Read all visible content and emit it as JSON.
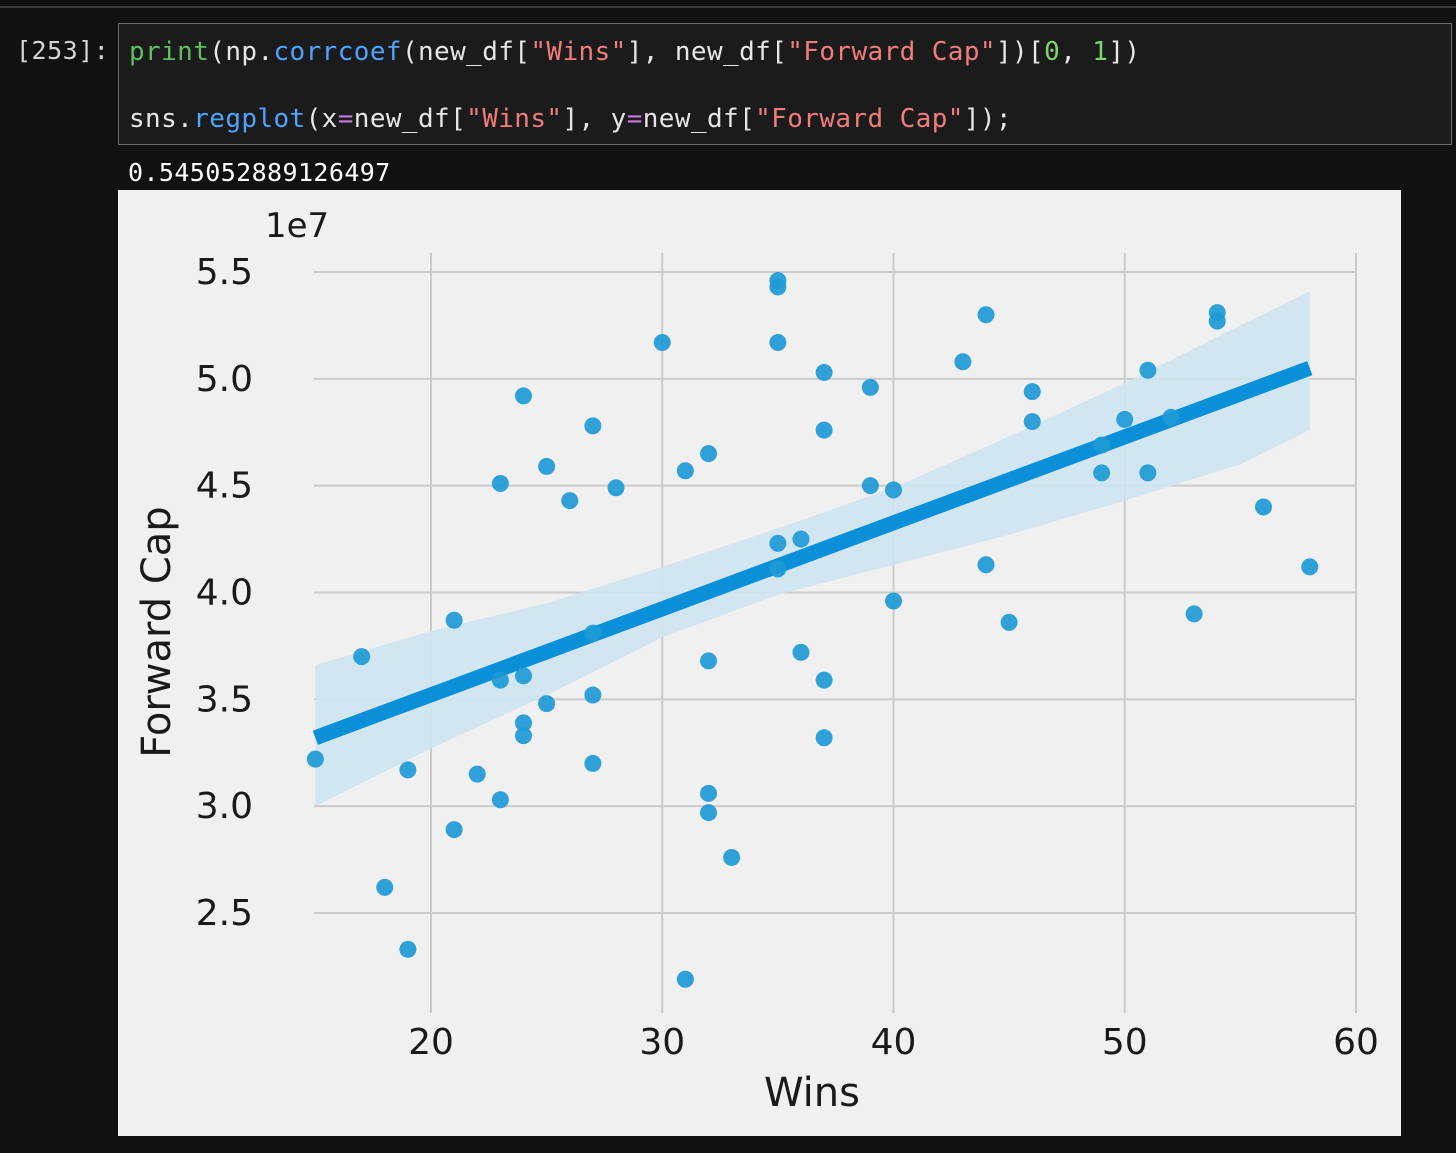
{
  "cell": {
    "prompt": "[253]:",
    "code_line1": [
      {
        "t": "print",
        "c": "tok-fn"
      },
      {
        "t": "(np.",
        "c": "tok-plain"
      },
      {
        "t": "corrcoef",
        "c": "tok-attr"
      },
      {
        "t": "(new_df[",
        "c": "tok-plain"
      },
      {
        "t": "\"Wins\"",
        "c": "tok-str"
      },
      {
        "t": "], new_df[",
        "c": "tok-plain"
      },
      {
        "t": "\"Forward Cap\"",
        "c": "tok-str"
      },
      {
        "t": "])[",
        "c": "tok-plain"
      },
      {
        "t": "0",
        "c": "tok-num"
      },
      {
        "t": ", ",
        "c": "tok-plain"
      },
      {
        "t": "1",
        "c": "tok-num"
      },
      {
        "t": "])",
        "c": "tok-plain"
      }
    ],
    "code_line2": [
      {
        "t": "sns.",
        "c": "tok-plain"
      },
      {
        "t": "regplot",
        "c": "tok-attr"
      },
      {
        "t": "(x",
        "c": "tok-plain"
      },
      {
        "t": "=",
        "c": "tok-op"
      },
      {
        "t": "new_df[",
        "c": "tok-plain"
      },
      {
        "t": "\"Wins\"",
        "c": "tok-str"
      },
      {
        "t": "], y",
        "c": "tok-plain"
      },
      {
        "t": "=",
        "c": "tok-op"
      },
      {
        "t": "new_df[",
        "c": "tok-plain"
      },
      {
        "t": "\"Forward Cap\"",
        "c": "tok-str"
      },
      {
        "t": "]);",
        "c": "tok-plain"
      }
    ],
    "output": "0.545052889126497"
  },
  "colors": {
    "point": "#1f9ad6",
    "line": "#0a8fd9",
    "band": "#cde4ef",
    "plot_bg": "#f0f0f0",
    "grid": "#cbcbcb"
  },
  "chart_data": {
    "type": "scatter",
    "xlabel": "Wins",
    "ylabel": "Forward Cap",
    "offset_label": "1e7",
    "xlim": [
      13.5,
      60
    ],
    "ylim": [
      2.15,
      5.6
    ],
    "xticks": [
      20,
      30,
      40,
      50,
      60
    ],
    "yticks": [
      2.5,
      3.0,
      3.5,
      4.0,
      4.5,
      5.0,
      5.5
    ],
    "xtick_labels": [
      "20",
      "30",
      "40",
      "50",
      "60"
    ],
    "ytick_labels": [
      "2.5",
      "3.0",
      "3.5",
      "4.0",
      "4.5",
      "5.0",
      "5.5"
    ],
    "grid": true,
    "points": [
      [
        15,
        3.22
      ],
      [
        17,
        3.7
      ],
      [
        18,
        2.62
      ],
      [
        19,
        2.33
      ],
      [
        19,
        3.17
      ],
      [
        21,
        2.89
      ],
      [
        21,
        3.87
      ],
      [
        22,
        3.15
      ],
      [
        23,
        3.03
      ],
      [
        23,
        3.59
      ],
      [
        23,
        4.51
      ],
      [
        24,
        3.33
      ],
      [
        24,
        3.39
      ],
      [
        24,
        3.61
      ],
      [
        24,
        4.92
      ],
      [
        25,
        3.48
      ],
      [
        25,
        4.59
      ],
      [
        26,
        4.43
      ],
      [
        27,
        3.2
      ],
      [
        27,
        3.52
      ],
      [
        27,
        3.81
      ],
      [
        27,
        4.78
      ],
      [
        28,
        4.49
      ],
      [
        30,
        5.17
      ],
      [
        31,
        2.19
      ],
      [
        31,
        4.57
      ],
      [
        32,
        2.97
      ],
      [
        32,
        3.06
      ],
      [
        32,
        3.68
      ],
      [
        32,
        4.65
      ],
      [
        33,
        2.76
      ],
      [
        35,
        4.11
      ],
      [
        35,
        4.23
      ],
      [
        35,
        5.17
      ],
      [
        35,
        5.43
      ],
      [
        35,
        5.46
      ],
      [
        36,
        3.72
      ],
      [
        36,
        4.25
      ],
      [
        37,
        3.32
      ],
      [
        37,
        3.59
      ],
      [
        37,
        4.76
      ],
      [
        37,
        5.03
      ],
      [
        39,
        4.5
      ],
      [
        39,
        4.96
      ],
      [
        40,
        3.96
      ],
      [
        40,
        4.48
      ],
      [
        43,
        5.08
      ],
      [
        44,
        4.13
      ],
      [
        44,
        5.3
      ],
      [
        45,
        3.86
      ],
      [
        46,
        4.8
      ],
      [
        46,
        4.94
      ],
      [
        49,
        4.56
      ],
      [
        49,
        4.69
      ],
      [
        50,
        4.81
      ],
      [
        51,
        4.56
      ],
      [
        51,
        5.04
      ],
      [
        52,
        4.82
      ],
      [
        53,
        3.9
      ],
      [
        54,
        5.27
      ],
      [
        54,
        5.31
      ],
      [
        56,
        4.4
      ],
      [
        58,
        4.12
      ]
    ],
    "regression": {
      "x": [
        15,
        58
      ],
      "y": [
        3.32,
        5.05
      ]
    },
    "ci_band": {
      "x": [
        15,
        20,
        25,
        30,
        35,
        40,
        45,
        50,
        55,
        58
      ],
      "lower": [
        3.0,
        3.27,
        3.52,
        3.79,
        3.99,
        4.13,
        4.27,
        4.43,
        4.6,
        4.76
      ],
      "upper": [
        3.66,
        3.82,
        3.95,
        4.12,
        4.3,
        4.49,
        4.73,
        4.98,
        5.25,
        5.41
      ]
    }
  }
}
